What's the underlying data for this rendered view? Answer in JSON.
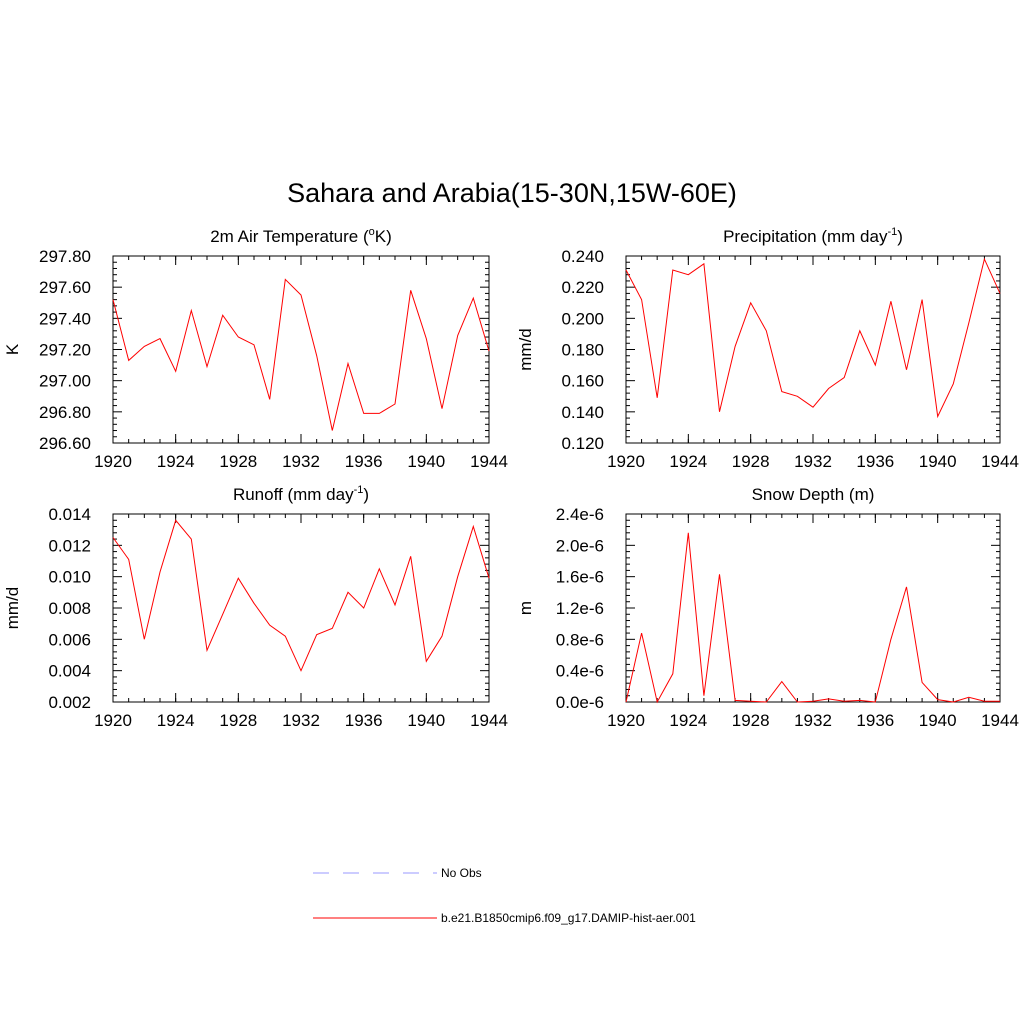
{
  "figure": {
    "title": "Sahara and Arabia(15-30N,15W-60E)"
  },
  "legend": {
    "entries": [
      {
        "label": "No Obs",
        "style": "dashed",
        "color": "#9a9aff"
      },
      {
        "label": "b.e21.B1850cmip6.f09_g17.DAMIP-hist-aer.001",
        "style": "solid",
        "color": "#ff0000"
      }
    ]
  },
  "chart_data": [
    {
      "type": "line",
      "title": "2m Air Temperature (",
      "title_sup": "o",
      "title_end": "K)",
      "ylabel": "K",
      "ylim": [
        296.6,
        297.8
      ],
      "yticks": [
        296.6,
        296.8,
        297.0,
        297.2,
        297.4,
        297.6,
        297.8
      ],
      "ytick_labels": [
        "296.60",
        "296.80",
        "297.00",
        "297.20",
        "297.40",
        "297.60",
        "297.80"
      ],
      "xlim": [
        1920,
        1944
      ],
      "xticks": [
        1920,
        1924,
        1928,
        1932,
        1936,
        1940,
        1944
      ],
      "xtick_labels": [
        "1920",
        "1924",
        "1928",
        "1932",
        "1936",
        "1940",
        "1944"
      ],
      "line_color": "#ff0000",
      "series": [
        {
          "name": "b.e21.B1850cmip6.f09_g17.DAMIP-hist-aer.001",
          "x": [
            1920,
            1921,
            1922,
            1923,
            1924,
            1925,
            1926,
            1927,
            1928,
            1929,
            1930,
            1931,
            1932,
            1933,
            1934,
            1935,
            1936,
            1937,
            1938,
            1939,
            1940,
            1941,
            1942,
            1943,
            1944
          ],
          "values": [
            297.52,
            297.13,
            297.22,
            297.27,
            297.06,
            297.45,
            297.09,
            297.42,
            297.28,
            297.23,
            296.88,
            297.65,
            297.55,
            297.16,
            296.68,
            297.11,
            296.79,
            296.79,
            296.85,
            297.58,
            297.27,
            296.82,
            297.29,
            297.53,
            297.19
          ]
        }
      ]
    },
    {
      "type": "line",
      "title": "Precipitation (mm day",
      "title_sup": "-1",
      "title_end": ")",
      "ylabel": "mm/d",
      "ylim": [
        0.12,
        0.24
      ],
      "yticks": [
        0.12,
        0.14,
        0.16,
        0.18,
        0.2,
        0.22,
        0.24
      ],
      "ytick_labels": [
        "0.120",
        "0.140",
        "0.160",
        "0.180",
        "0.200",
        "0.220",
        "0.240"
      ],
      "xlim": [
        1920,
        1944
      ],
      "xticks": [
        1920,
        1924,
        1928,
        1932,
        1936,
        1940,
        1944
      ],
      "xtick_labels": [
        "1920",
        "1924",
        "1928",
        "1932",
        "1936",
        "1940",
        "1944"
      ],
      "line_color": "#ff0000",
      "series": [
        {
          "name": "b.e21.B1850cmip6.f09_g17.DAMIP-hist-aer.001",
          "x": [
            1920,
            1921,
            1922,
            1923,
            1924,
            1925,
            1926,
            1927,
            1928,
            1929,
            1930,
            1931,
            1932,
            1933,
            1934,
            1935,
            1936,
            1937,
            1938,
            1939,
            1940,
            1941,
            1942,
            1943,
            1944
          ],
          "values": [
            0.231,
            0.212,
            0.149,
            0.231,
            0.228,
            0.235,
            0.14,
            0.182,
            0.21,
            0.192,
            0.153,
            0.15,
            0.143,
            0.155,
            0.162,
            0.192,
            0.17,
            0.211,
            0.167,
            0.212,
            0.137,
            0.158,
            0.197,
            0.238,
            0.216
          ]
        }
      ]
    },
    {
      "type": "line",
      "title": "Runoff (mm day",
      "title_sup": "-1",
      "title_end": ")",
      "ylabel": "mm/d",
      "ylim": [
        0.002,
        0.014
      ],
      "yticks": [
        0.002,
        0.004,
        0.006,
        0.008,
        0.01,
        0.012,
        0.014
      ],
      "ytick_labels": [
        "0.002",
        "0.004",
        "0.006",
        "0.008",
        "0.010",
        "0.012",
        "0.014"
      ],
      "xlim": [
        1920,
        1944
      ],
      "xticks": [
        1920,
        1924,
        1928,
        1932,
        1936,
        1940,
        1944
      ],
      "xtick_labels": [
        "1920",
        "1924",
        "1928",
        "1932",
        "1936",
        "1940",
        "1944"
      ],
      "line_color": "#ff0000",
      "series": [
        {
          "name": "b.e21.B1850cmip6.f09_g17.DAMIP-hist-aer.001",
          "x": [
            1920,
            1921,
            1922,
            1923,
            1924,
            1925,
            1926,
            1927,
            1928,
            1929,
            1930,
            1931,
            1932,
            1933,
            1934,
            1935,
            1936,
            1937,
            1938,
            1939,
            1940,
            1941,
            1942,
            1943,
            1944
          ],
          "values": [
            0.0125,
            0.0111,
            0.006,
            0.0103,
            0.0136,
            0.0124,
            0.0053,
            0.0076,
            0.0099,
            0.0083,
            0.0069,
            0.0062,
            0.004,
            0.0063,
            0.0067,
            0.009,
            0.008,
            0.0105,
            0.0082,
            0.0113,
            0.0046,
            0.0062,
            0.01,
            0.0132,
            0.0099
          ]
        }
      ]
    },
    {
      "type": "line",
      "title": "Snow Depth (m)",
      "title_sup": "",
      "title_end": "",
      "ylabel": "m",
      "ylim": [
        0.0,
        2.4e-06
      ],
      "yticks": [
        0.0,
        4e-07,
        8e-07,
        1.2e-06,
        1.6e-06,
        2e-06,
        2.4e-06
      ],
      "ytick_labels": [
        "0.0e-6",
        "0.4e-6",
        "0.8e-6",
        "1.2e-6",
        "1.6e-6",
        "2.0e-6",
        "2.4e-6"
      ],
      "xlim": [
        1920,
        1944
      ],
      "xticks": [
        1920,
        1924,
        1928,
        1932,
        1936,
        1940,
        1944
      ],
      "xtick_labels": [
        "1920",
        "1924",
        "1928",
        "1932",
        "1936",
        "1940",
        "1944"
      ],
      "line_color": "#ff0000",
      "series": [
        {
          "name": "b.e21.B1850cmip6.f09_g17.DAMIP-hist-aer.001",
          "x": [
            1920,
            1921,
            1922,
            1923,
            1924,
            1925,
            1926,
            1927,
            1928,
            1929,
            1930,
            1931,
            1932,
            1933,
            1934,
            1935,
            1936,
            1937,
            1938,
            1939,
            1940,
            1941,
            1942,
            1943,
            1944
          ],
          "values": [
            0.0,
            8.8e-07,
            0.0,
            3.6e-07,
            2.16e-06,
            8e-08,
            1.63e-06,
            2e-08,
            1e-08,
            0.0,
            2.6e-07,
            0.0,
            1e-08,
            4e-08,
            1e-08,
            2e-08,
            0.0,
            8e-07,
            1.47e-06,
            2.5e-07,
            3e-08,
            0.0,
            6e-08,
            1e-08,
            1e-08
          ]
        }
      ]
    }
  ]
}
